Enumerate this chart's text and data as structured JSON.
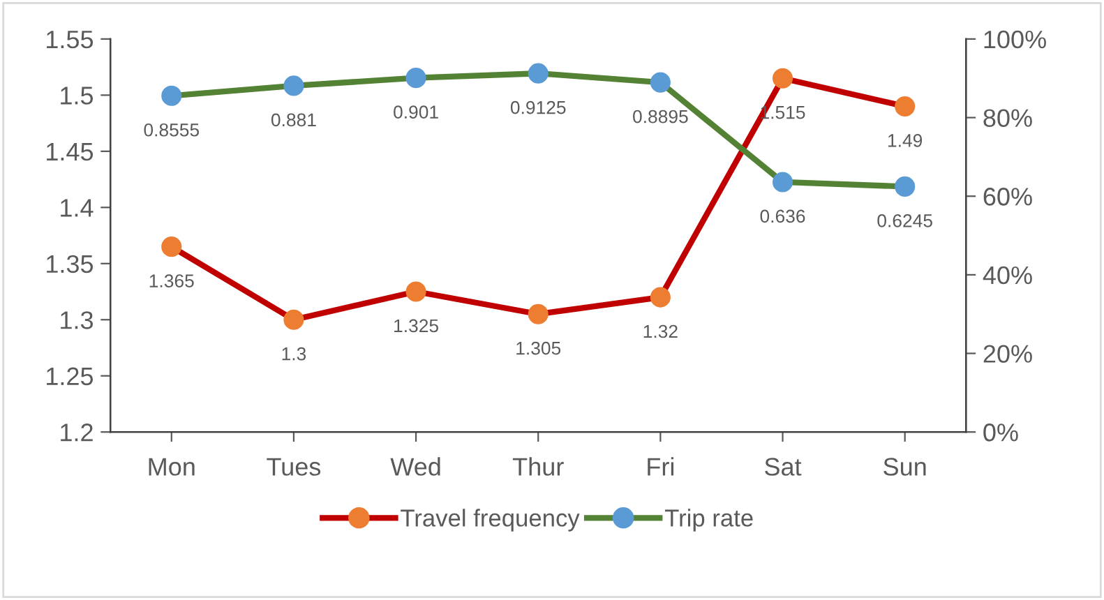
{
  "chart_data": {
    "type": "line",
    "categories": [
      "Mon",
      "Tues",
      "Wed",
      "Thur",
      "Fri",
      "Sat",
      "Sun"
    ],
    "series": [
      {
        "name": "Travel frequency",
        "color": "#c00000",
        "colors": [
          "#ed7d31",
          "#ed7d31",
          "#ed7d31",
          "#ed7d31",
          "#ed7d31",
          "#ed7d31",
          "#ed7d31"
        ],
        "values": [
          1.365,
          1.3,
          1.325,
          1.305,
          1.32,
          1.515,
          1.49
        ]
      },
      {
        "name": "Trip rate",
        "color": "#548235",
        "colors": [
          "#5b9bd5",
          "#5b9bd5",
          "#5b9bd5",
          "#5b9bd5",
          "#5b9bd5",
          "#5b9bd5",
          "#5b9bd5"
        ],
        "axis": "y2",
        "values": [
          0.8555,
          0.881,
          0.901,
          0.9125,
          0.8895,
          0.636,
          0.6245
        ]
      }
    ],
    "ylim": [
      1.2,
      1.55
    ],
    "yticks": [
      1.2,
      1.25,
      1.3,
      1.35,
      1.4,
      1.45,
      1.5,
      1.55
    ],
    "y2lim": [
      0,
      1
    ],
    "y2ticks": [
      {
        "value": 0,
        "label": "0%"
      },
      {
        "value": 0.2,
        "label": "20%"
      },
      {
        "value": 0.4,
        "label": "40%"
      },
      {
        "value": 0.6,
        "label": "60%"
      },
      {
        "value": 0.8,
        "label": "80%"
      },
      {
        "value": 1,
        "label": "100%"
      }
    ],
    "marker": "circle",
    "line_style": "solid",
    "data_labels": true,
    "legend": "bottom",
    "grid": false
  }
}
